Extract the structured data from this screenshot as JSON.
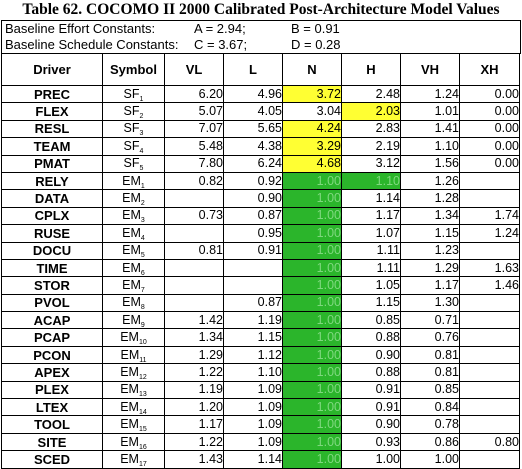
{
  "title": "Table 62.  COCOMO II 2000 Calibrated Post-Architecture Model Values",
  "constants": [
    {
      "label": "Baseline Effort Constants:",
      "a": "A = 2.94;",
      "b": "B = 0.91"
    },
    {
      "label": "Baseline Schedule Constants:",
      "a": "C = 3.67;",
      "b": "D = 0.28"
    }
  ],
  "headers": [
    "Driver",
    "Symbol",
    "VL",
    "L",
    "N",
    "H",
    "VH",
    "XH"
  ],
  "rows": [
    {
      "driver": "PREC",
      "sym": "SF",
      "sub": "1",
      "vl": "6.20",
      "l": "4.96",
      "n": "3.72",
      "h": "2.48",
      "vh": "1.24",
      "xh": "0.00"
    },
    {
      "driver": "FLEX",
      "sym": "SF",
      "sub": "2",
      "vl": "5.07",
      "l": "4.05",
      "n": "3.04",
      "h": "2.03",
      "vh": "1.01",
      "xh": "0.00"
    },
    {
      "driver": "RESL",
      "sym": "SF",
      "sub": "3",
      "vl": "7.07",
      "l": "5.65",
      "n": "4.24",
      "h": "2.83",
      "vh": "1.41",
      "xh": "0.00"
    },
    {
      "driver": "TEAM",
      "sym": "SF",
      "sub": "4",
      "vl": "5.48",
      "l": "4.38",
      "n": "3.29",
      "h": "2.19",
      "vh": "1.10",
      "xh": "0.00"
    },
    {
      "driver": "PMAT",
      "sym": "SF",
      "sub": "5",
      "vl": "7.80",
      "l": "6.24",
      "n": "4.68",
      "h": "3.12",
      "vh": "1.56",
      "xh": "0.00"
    },
    {
      "driver": "RELY",
      "sym": "EM",
      "sub": "1",
      "vl": "0.82",
      "l": "0.92",
      "n": "1.00",
      "h": "1.10",
      "vh": "1.26",
      "xh": ""
    },
    {
      "driver": "DATA",
      "sym": "EM",
      "sub": "2",
      "vl": "",
      "l": "0.90",
      "n": "1.00",
      "h": "1.14",
      "vh": "1.28",
      "xh": ""
    },
    {
      "driver": "CPLX",
      "sym": "EM",
      "sub": "3",
      "vl": "0.73",
      "l": "0.87",
      "n": "1.00",
      "h": "1.17",
      "vh": "1.34",
      "xh": "1.74"
    },
    {
      "driver": "RUSE",
      "sym": "EM",
      "sub": "4",
      "vl": "",
      "l": "0.95",
      "n": "1.00",
      "h": "1.07",
      "vh": "1.15",
      "xh": "1.24"
    },
    {
      "driver": "DOCU",
      "sym": "EM",
      "sub": "5",
      "vl": "0.81",
      "l": "0.91",
      "n": "1.00",
      "h": "1.11",
      "vh": "1.23",
      "xh": ""
    },
    {
      "driver": "TIME",
      "sym": "EM",
      "sub": "6",
      "vl": "",
      "l": "",
      "n": "1.00",
      "h": "1.11",
      "vh": "1.29",
      "xh": "1.63"
    },
    {
      "driver": "STOR",
      "sym": "EM",
      "sub": "7",
      "vl": "",
      "l": "",
      "n": "1.00",
      "h": "1.05",
      "vh": "1.17",
      "xh": "1.46"
    },
    {
      "driver": "PVOL",
      "sym": "EM",
      "sub": "8",
      "vl": "",
      "l": "0.87",
      "n": "1.00",
      "h": "1.15",
      "vh": "1.30",
      "xh": ""
    },
    {
      "driver": "ACAP",
      "sym": "EM",
      "sub": "9",
      "vl": "1.42",
      "l": "1.19",
      "n": "1.00",
      "h": "0.85",
      "vh": "0.71",
      "xh": ""
    },
    {
      "driver": "PCAP",
      "sym": "EM",
      "sub": "10",
      "vl": "1.34",
      "l": "1.15",
      "n": "1.00",
      "h": "0.88",
      "vh": "0.76",
      "xh": ""
    },
    {
      "driver": "PCON",
      "sym": "EM",
      "sub": "11",
      "vl": "1.29",
      "l": "1.12",
      "n": "1.00",
      "h": "0.90",
      "vh": "0.81",
      "xh": ""
    },
    {
      "driver": "APEX",
      "sym": "EM",
      "sub": "12",
      "vl": "1.22",
      "l": "1.10",
      "n": "1.00",
      "h": "0.88",
      "vh": "0.81",
      "xh": ""
    },
    {
      "driver": "PLEX",
      "sym": "EM",
      "sub": "13",
      "vl": "1.19",
      "l": "1.09",
      "n": "1.00",
      "h": "0.91",
      "vh": "0.85",
      "xh": ""
    },
    {
      "driver": "LTEX",
      "sym": "EM",
      "sub": "14",
      "vl": "1.20",
      "l": "1.09",
      "n": "1.00",
      "h": "0.91",
      "vh": "0.84",
      "xh": ""
    },
    {
      "driver": "TOOL",
      "sym": "EM",
      "sub": "15",
      "vl": "1.17",
      "l": "1.09",
      "n": "1.00",
      "h": "0.90",
      "vh": "0.78",
      "xh": ""
    },
    {
      "driver": "SITE",
      "sym": "EM",
      "sub": "16",
      "vl": "1.22",
      "l": "1.09",
      "n": "1.00",
      "h": "0.93",
      "vh": "0.86",
      "xh": "0.80"
    },
    {
      "driver": "SCED",
      "sym": "EM",
      "sub": "17",
      "vl": "1.43",
      "l": "1.14",
      "n": "1.00",
      "h": "1.00",
      "vh": "1.00",
      "xh": ""
    }
  ],
  "highlight": {
    "yellow": "#ffff33",
    "green": "#2bb52b",
    "yellow_cells": [
      [
        0,
        "n"
      ],
      [
        1,
        "h"
      ],
      [
        2,
        "n"
      ],
      [
        3,
        "n"
      ],
      [
        4,
        "n"
      ]
    ],
    "green_cells_from_row": 5,
    "green_extra": [
      [
        5,
        "h"
      ]
    ]
  }
}
